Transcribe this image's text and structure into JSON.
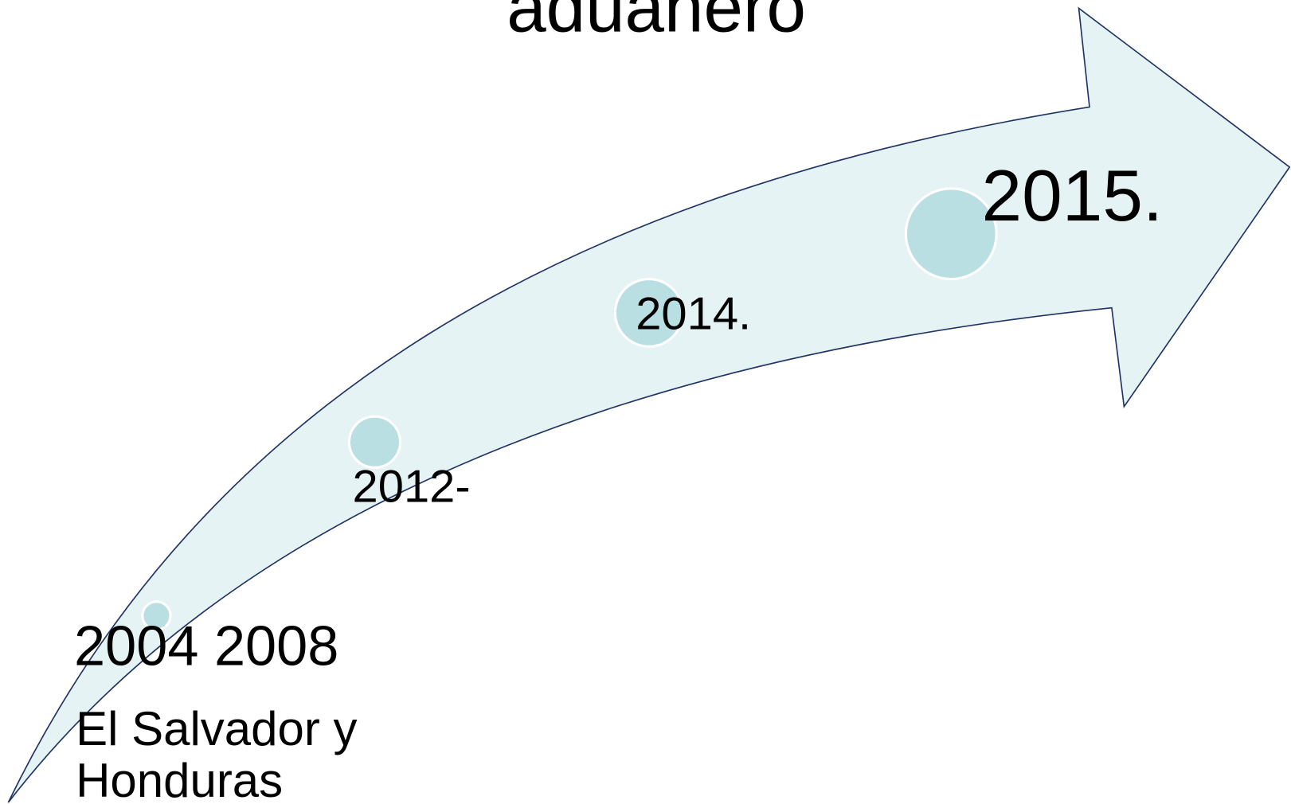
{
  "title": "aduanero",
  "milestones": [
    {
      "label": "2004 2008",
      "description": [
        "El Salvador y",
        "Honduras"
      ]
    },
    {
      "label": "2012-"
    },
    {
      "label": "2014."
    },
    {
      "label": "2015."
    }
  ]
}
